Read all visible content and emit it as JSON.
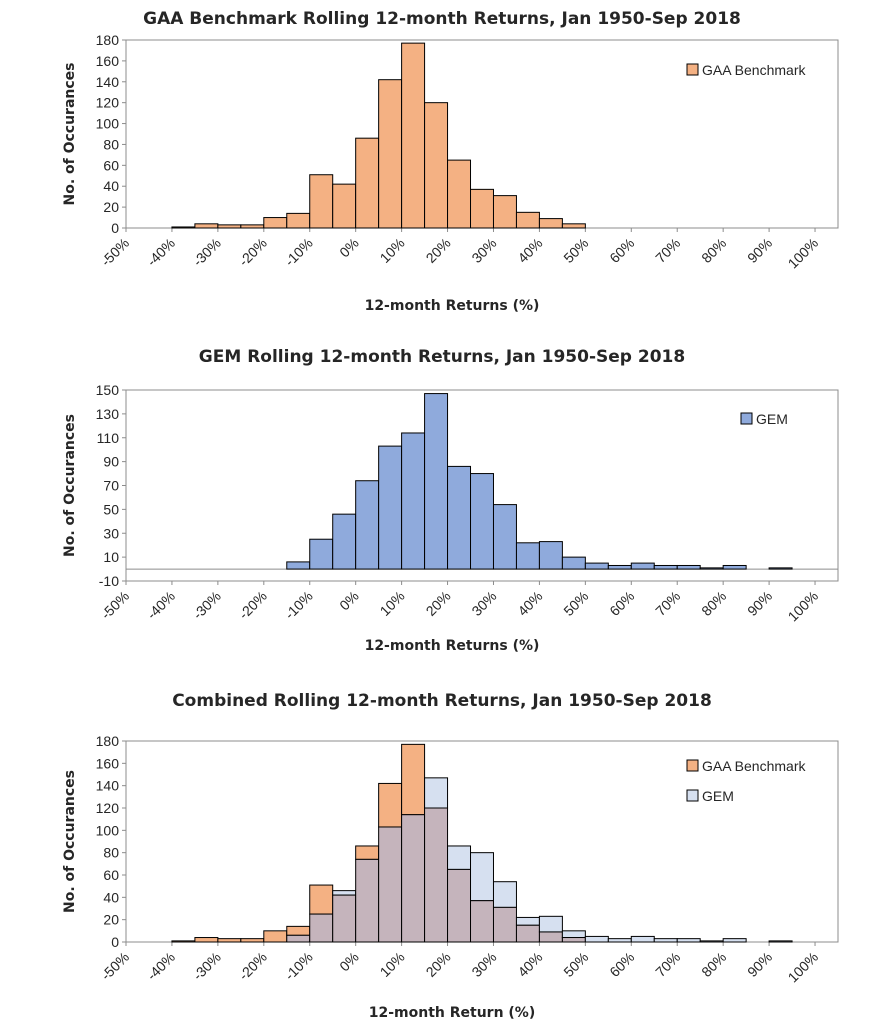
{
  "colors": {
    "gaa_fill": "#F4B183",
    "gem_fill": "#8FAADC",
    "gem_light_fill": "#D6E0F0",
    "overlap_fill": "#C5B4BC",
    "bar_stroke": "#000000",
    "axis": "#8c8c8c",
    "text": "#262626"
  },
  "chart_data": [
    {
      "type": "bar",
      "title": "GAA Benchmark Rolling 12-month Returns, Jan 1950-Sep 2018",
      "xlabel": "12-month Returns (%)",
      "ylabel": "No. of Occurances",
      "ylim": [
        0,
        180
      ],
      "yticks": [
        0,
        20,
        40,
        60,
        80,
        100,
        120,
        140,
        160,
        180
      ],
      "xlim": [
        -50,
        105
      ],
      "xticks": [
        "-50%",
        "-40%",
        "-30%",
        "-20%",
        "-10%",
        "0%",
        "10%",
        "20%",
        "30%",
        "40%",
        "50%",
        "60%",
        "70%",
        "80%",
        "90%",
        "100%"
      ],
      "bin_width": 5,
      "legend_position": "top-right",
      "series": [
        {
          "name": "GAA Benchmark",
          "bin_starts": [
            -40,
            -35,
            -30,
            -25,
            -20,
            -15,
            -10,
            -5,
            0,
            5,
            10,
            15,
            20,
            25,
            30,
            35,
            40,
            45
          ],
          "values": [
            1,
            4,
            3,
            3,
            10,
            14,
            51,
            42,
            86,
            142,
            177,
            120,
            65,
            37,
            31,
            15,
            9,
            4
          ]
        }
      ]
    },
    {
      "type": "bar",
      "title": "GEM Rolling 12-month Returns, Jan 1950-Sep 2018",
      "xlabel": "12-month Returns (%)",
      "ylabel": "No. of Occurances",
      "ylim": [
        -10,
        150
      ],
      "yticks": [
        -10,
        10,
        30,
        50,
        70,
        90,
        110,
        130,
        150
      ],
      "xlim": [
        -50,
        105
      ],
      "xticks": [
        "-50%",
        "-40%",
        "-30%",
        "-20%",
        "-10%",
        "0%",
        "10%",
        "20%",
        "30%",
        "40%",
        "50%",
        "60%",
        "70%",
        "80%",
        "90%",
        "100%"
      ],
      "bin_width": 5,
      "legend_position": "top-right",
      "series": [
        {
          "name": "GEM",
          "bin_starts": [
            -15,
            -10,
            -5,
            0,
            5,
            10,
            15,
            20,
            25,
            30,
            35,
            40,
            45,
            50,
            55,
            60,
            65,
            70,
            75,
            80,
            85,
            90
          ],
          "values": [
            6,
            25,
            46,
            74,
            103,
            114,
            147,
            86,
            80,
            54,
            22,
            23,
            10,
            5,
            3,
            5,
            3,
            3,
            1,
            3,
            0,
            1
          ]
        }
      ]
    },
    {
      "type": "bar",
      "title": "Combined Rolling 12-month Returns, Jan 1950-Sep 2018",
      "xlabel": "12-month Return (%)",
      "ylabel": "No. of Occurances",
      "ylim": [
        0,
        180
      ],
      "yticks": [
        0,
        20,
        40,
        60,
        80,
        100,
        120,
        140,
        160,
        180
      ],
      "xlim": [
        -50,
        105
      ],
      "xticks": [
        "-50%",
        "-40%",
        "-30%",
        "-20%",
        "-10%",
        "0%",
        "10%",
        "20%",
        "30%",
        "40%",
        "50%",
        "60%",
        "70%",
        "80%",
        "90%",
        "100%"
      ],
      "bin_width": 5,
      "legend_position": "top-right",
      "series": [
        {
          "name": "GAA Benchmark",
          "bin_starts": [
            -40,
            -35,
            -30,
            -25,
            -20,
            -15,
            -10,
            -5,
            0,
            5,
            10,
            15,
            20,
            25,
            30,
            35,
            40,
            45
          ],
          "values": [
            1,
            4,
            3,
            3,
            10,
            14,
            51,
            42,
            86,
            142,
            177,
            120,
            65,
            37,
            31,
            15,
            9,
            4
          ]
        },
        {
          "name": "GEM",
          "bin_starts": [
            -15,
            -10,
            -5,
            0,
            5,
            10,
            15,
            20,
            25,
            30,
            35,
            40,
            45,
            50,
            55,
            60,
            65,
            70,
            75,
            80,
            85,
            90
          ],
          "values": [
            6,
            25,
            46,
            74,
            103,
            114,
            147,
            86,
            80,
            54,
            22,
            23,
            10,
            5,
            3,
            5,
            3,
            3,
            1,
            3,
            0,
            1
          ]
        }
      ]
    }
  ]
}
